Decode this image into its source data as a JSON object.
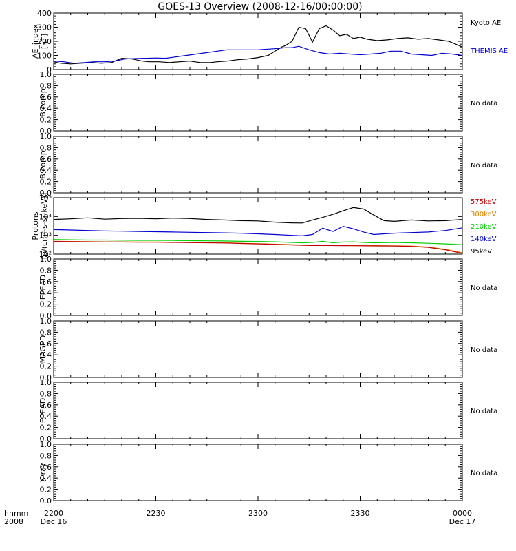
{
  "title": "GOES-13 Overview (2008-12-16/00:00:00)",
  "x_axis": {
    "row_label_1": "hhmm",
    "row_label_2": "2008",
    "ticks": [
      {
        "t": 0,
        "label": "2200",
        "sub": "Dec 16"
      },
      {
        "t": 30,
        "label": "2230",
        "sub": ""
      },
      {
        "t": 60,
        "label": "2300",
        "sub": ""
      },
      {
        "t": 90,
        "label": "2330",
        "sub": ""
      },
      {
        "t": 120,
        "label": "0000",
        "sub": "Dec 17"
      }
    ]
  },
  "colors": {
    "black": "#000000",
    "blue": "#0000d0",
    "red": "#c00000",
    "orange": "#e08000",
    "green": "#00d000"
  },
  "chart_data": [
    {
      "type": "line",
      "ylabel": [
        "AE_index",
        "[nT]"
      ],
      "ylim": [
        0,
        400
      ],
      "yticks": [
        "0",
        "100",
        "200",
        "300",
        "400"
      ],
      "ytick_values": [
        0,
        100,
        200,
        300,
        400
      ],
      "legend": [
        {
          "label": "Kyoto AE",
          "color": "#000000"
        },
        {
          "label": "THEMIS AE",
          "color": "#0000d0"
        }
      ],
      "series": [
        {
          "name": "Kyoto AE",
          "color": "#000000",
          "x": [
            0,
            2,
            5,
            8,
            11,
            14,
            17,
            20,
            23,
            26,
            28,
            31,
            34,
            37,
            40,
            43,
            46,
            48,
            51,
            54,
            57,
            60,
            63,
            65,
            67,
            68,
            70,
            72,
            74,
            76,
            78,
            80,
            82,
            84,
            86,
            88,
            90,
            92,
            95,
            98,
            101,
            104,
            107,
            110,
            113,
            116,
            118,
            120
          ],
          "y": [
            55,
            45,
            40,
            45,
            50,
            45,
            50,
            80,
            75,
            60,
            55,
            55,
            50,
            55,
            60,
            50,
            50,
            55,
            60,
            70,
            75,
            85,
            100,
            130,
            160,
            170,
            200,
            300,
            290,
            195,
            290,
            310,
            280,
            240,
            250,
            220,
            230,
            215,
            205,
            210,
            220,
            225,
            215,
            220,
            210,
            200,
            180,
            160
          ]
        },
        {
          "name": "THEMIS AE",
          "color": "#0000d0",
          "x": [
            0,
            3,
            6,
            9,
            12,
            15,
            18,
            21,
            24,
            27,
            30,
            33,
            36,
            39,
            42,
            45,
            48,
            51,
            54,
            57,
            60,
            63,
            66,
            68,
            70,
            72,
            75,
            78,
            81,
            84,
            87,
            90,
            93,
            96,
            99,
            102,
            105,
            108,
            111,
            114,
            117,
            120
          ],
          "y": [
            60,
            55,
            45,
            50,
            55,
            55,
            60,
            75,
            78,
            80,
            82,
            80,
            90,
            100,
            110,
            120,
            130,
            140,
            140,
            140,
            140,
            145,
            150,
            155,
            155,
            165,
            140,
            120,
            110,
            115,
            110,
            105,
            110,
            115,
            130,
            130,
            110,
            105,
            100,
            115,
            110,
            100
          ]
        }
      ]
    },
    {
      "type": "line",
      "ylabel": [
        "B comp"
      ],
      "ylim": [
        0,
        1
      ],
      "yticks": [
        "0.0",
        "0.2",
        "0.4",
        "0.6",
        "0.8",
        "1.0"
      ],
      "ytick_values": [
        0,
        0.2,
        0.4,
        0.6,
        0.8,
        1.0
      ],
      "legend": [
        {
          "label": "No data",
          "color": "#000000"
        }
      ],
      "series": []
    },
    {
      "type": "line",
      "ylabel": [
        "B comp"
      ],
      "ylim": [
        0,
        1
      ],
      "yticks": [
        "0.0",
        "0.2",
        "0.4",
        "0.6",
        "0.8",
        "1.0"
      ],
      "ytick_values": [
        0,
        0.2,
        0.4,
        0.6,
        0.8,
        1.0
      ],
      "legend": [
        {
          "label": "No data",
          "color": "#000000"
        }
      ],
      "series": []
    },
    {
      "type": "line",
      "log_y": true,
      "ylabel": [
        "Protons",
        "[p/(cm²-s-sr-keV)]"
      ],
      "ylim": [
        100,
        100000
      ],
      "yticks": [
        "10²",
        "10³",
        "10⁴",
        "10⁵"
      ],
      "ytick_values": [
        100,
        1000,
        10000,
        100000
      ],
      "legend": [
        {
          "label": "575keV",
          "color": "#c00000"
        },
        {
          "label": "300keV",
          "color": "#e08000"
        },
        {
          "label": "210keV",
          "color": "#00d000"
        },
        {
          "label": "140keV",
          "color": "#0000d0"
        },
        {
          "label": "95keV",
          "color": "#000000"
        }
      ],
      "series": [
        {
          "name": "95keV",
          "color": "#000000",
          "x": [
            0,
            5,
            10,
            15,
            20,
            25,
            30,
            35,
            40,
            45,
            50,
            55,
            60,
            65,
            70,
            73,
            76,
            79,
            82,
            85,
            88,
            91,
            94,
            97,
            100,
            105,
            110,
            115,
            120
          ],
          "y": [
            7000,
            7500,
            8500,
            7200,
            7800,
            8000,
            7500,
            8200,
            7800,
            7000,
            6500,
            6000,
            5800,
            5000,
            4600,
            4500,
            6500,
            9000,
            13000,
            20000,
            30000,
            25000,
            12000,
            6000,
            5500,
            6500,
            5800,
            6000,
            7000
          ]
        },
        {
          "name": "140keV",
          "color": "#0000d0",
          "x": [
            0,
            5,
            10,
            15,
            20,
            25,
            30,
            35,
            40,
            45,
            50,
            55,
            60,
            65,
            70,
            73,
            76,
            79,
            82,
            85,
            88,
            91,
            94,
            97,
            100,
            105,
            110,
            115,
            120
          ],
          "y": [
            2000,
            1900,
            1800,
            1700,
            1650,
            1600,
            1550,
            1500,
            1450,
            1400,
            1350,
            1300,
            1200,
            1100,
            1000,
            950,
            1100,
            2400,
            1600,
            3000,
            2200,
            1500,
            1100,
            1200,
            1300,
            1400,
            1500,
            1800,
            2500
          ]
        },
        {
          "name": "210keV",
          "color": "#00d000",
          "x": [
            0,
            5,
            10,
            15,
            20,
            25,
            30,
            35,
            40,
            45,
            50,
            55,
            60,
            65,
            70,
            73,
            76,
            79,
            82,
            85,
            88,
            91,
            94,
            97,
            100,
            105,
            110,
            115,
            120
          ],
          "y": [
            600,
            580,
            560,
            560,
            550,
            540,
            540,
            530,
            520,
            510,
            500,
            480,
            470,
            450,
            420,
            400,
            420,
            480,
            400,
            440,
            450,
            420,
            400,
            410,
            420,
            400,
            380,
            350,
            320
          ]
        },
        {
          "name": "300keV",
          "color": "#e08000",
          "x": [
            0,
            5,
            10,
            15,
            20,
            25,
            30,
            35,
            40,
            45,
            50,
            55,
            60,
            65,
            70,
            75,
            80,
            85,
            90,
            95,
            100,
            105,
            110,
            115,
            120
          ],
          "y": [
            480,
            470,
            460,
            450,
            450,
            440,
            440,
            430,
            420,
            410,
            400,
            380,
            360,
            340,
            320,
            300,
            300,
            295,
            290,
            285,
            280,
            270,
            240,
            180,
            120
          ]
        },
        {
          "name": "575keV",
          "color": "#c00000",
          "x": [
            0,
            5,
            10,
            15,
            20,
            25,
            30,
            35,
            40,
            45,
            50,
            55,
            60,
            65,
            70,
            75,
            80,
            85,
            90,
            95,
            100,
            105,
            110,
            115,
            120
          ],
          "y": [
            470,
            460,
            450,
            440,
            440,
            430,
            430,
            420,
            410,
            400,
            390,
            370,
            350,
            330,
            310,
            290,
            290,
            285,
            280,
            275,
            270,
            260,
            230,
            170,
            110
          ]
        }
      ]
    },
    {
      "type": "line",
      "ylabel": [
        "EPEAD"
      ],
      "ylim": [
        0,
        1
      ],
      "yticks": [
        "0.0",
        "0.2",
        "0.4",
        "0.6",
        "0.8",
        "1.0"
      ],
      "ytick_values": [
        0,
        0.2,
        0.4,
        0.6,
        0.8,
        1.0
      ],
      "legend": [
        {
          "label": "No data",
          "color": "#000000"
        }
      ],
      "series": []
    },
    {
      "type": "line",
      "ylabel": [
        "MAGED"
      ],
      "ylim": [
        0,
        1
      ],
      "yticks": [
        "0.0",
        "0.2",
        "0.4",
        "0.6",
        "0.8",
        "1.0"
      ],
      "ytick_values": [
        0,
        0.2,
        0.4,
        0.6,
        0.8,
        1.0
      ],
      "legend": [
        {
          "label": "No data",
          "color": "#000000"
        }
      ],
      "series": []
    },
    {
      "type": "line",
      "ylabel": [
        "EPEAD"
      ],
      "ylim": [
        0,
        1
      ],
      "yticks": [
        "0.0",
        "0.2",
        "0.4",
        "0.6",
        "0.8",
        "1.0"
      ],
      "ytick_values": [
        0,
        0.2,
        0.4,
        0.6,
        0.8,
        1.0
      ],
      "legend": [
        {
          "label": "No data",
          "color": "#000000"
        }
      ],
      "series": []
    },
    {
      "type": "line",
      "ylabel": [
        "X-ray"
      ],
      "ylim": [
        0,
        1
      ],
      "yticks": [
        "0.0",
        "0.2",
        "0.4",
        "0.6",
        "0.8",
        "1.0"
      ],
      "ytick_values": [
        0,
        0.2,
        0.4,
        0.6,
        0.8,
        1.0
      ],
      "legend": [
        {
          "label": "No data",
          "color": "#000000"
        }
      ],
      "series": []
    }
  ]
}
